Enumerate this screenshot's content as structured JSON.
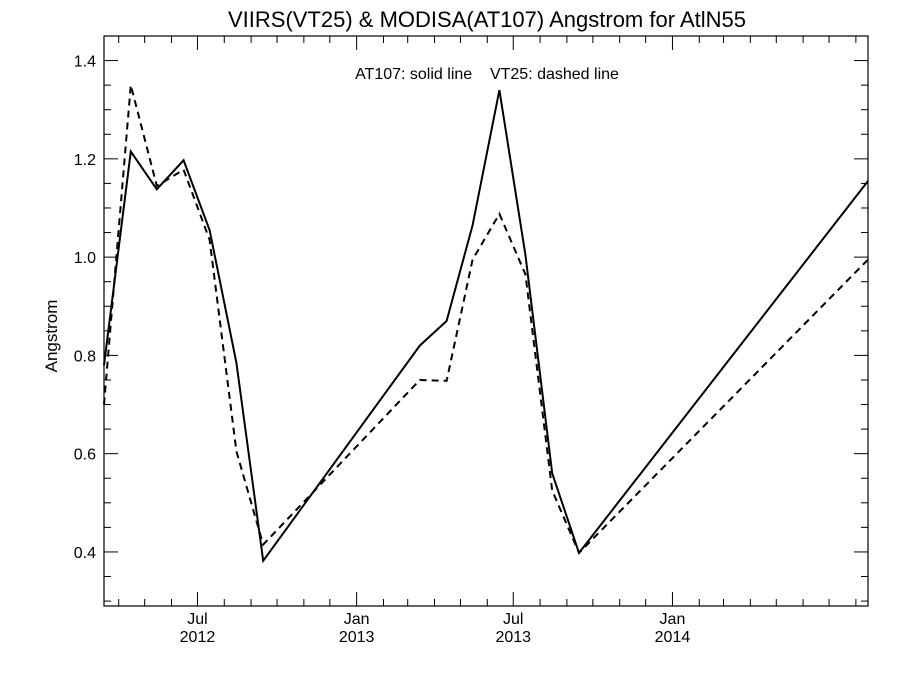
{
  "chart_data": {
    "type": "line",
    "title": "VIIRS(VT25) & MODISA(AT107)  Angstrom for AtlN55",
    "xlabel": "",
    "ylabel": "Angstrom",
    "annotation": "AT107: solid line    VT25: dashed line",
    "xlim": [
      "2012-03-15",
      "2014-08-15"
    ],
    "ylim": [
      0.29,
      1.45
    ],
    "y_ticks": [
      0.4,
      0.6,
      0.8,
      1.0,
      1.2,
      1.4
    ],
    "y_tick_labels": [
      "0.4",
      "0.6",
      "0.8",
      "1.0",
      "1.2",
      "1.4"
    ],
    "x_ticks": [
      {
        "date": "2012-07-01",
        "label": "Jul",
        "sublabel": "2012"
      },
      {
        "date": "2013-01-01",
        "label": "Jan",
        "sublabel": "2013"
      },
      {
        "date": "2013-07-01",
        "label": "Jul",
        "sublabel": "2013"
      },
      {
        "date": "2014-01-01",
        "label": "Jan",
        "sublabel": "2014"
      }
    ],
    "grid": false,
    "series": [
      {
        "name": "AT107",
        "style": "solid",
        "color": "#000000",
        "points": [
          {
            "x": "2012-03-15",
            "y": 0.78
          },
          {
            "x": "2012-04-15",
            "y": 1.215
          },
          {
            "x": "2012-05-15",
            "y": 1.138
          },
          {
            "x": "2012-06-15",
            "y": 1.197
          },
          {
            "x": "2012-07-15",
            "y": 1.055
          },
          {
            "x": "2012-08-15",
            "y": 0.785
          },
          {
            "x": "2012-09-15",
            "y": 0.382
          },
          {
            "x": "2013-03-15",
            "y": 0.82
          },
          {
            "x": "2013-04-15",
            "y": 0.87
          },
          {
            "x": "2013-05-15",
            "y": 1.065
          },
          {
            "x": "2013-06-15",
            "y": 1.34
          },
          {
            "x": "2013-07-15",
            "y": 1.005
          },
          {
            "x": "2013-08-15",
            "y": 0.56
          },
          {
            "x": "2013-09-15",
            "y": 0.398
          },
          {
            "x": "2014-08-15",
            "y": 1.155
          }
        ]
      },
      {
        "name": "VT25",
        "style": "dashed",
        "color": "#000000",
        "points": [
          {
            "x": "2012-03-15",
            "y": 0.7
          },
          {
            "x": "2012-04-15",
            "y": 1.35
          },
          {
            "x": "2012-05-15",
            "y": 1.145
          },
          {
            "x": "2012-06-15",
            "y": 1.178
          },
          {
            "x": "2012-07-15",
            "y": 1.035
          },
          {
            "x": "2012-08-15",
            "y": 0.605
          },
          {
            "x": "2012-09-15",
            "y": 0.415
          },
          {
            "x": "2013-03-15",
            "y": 0.75
          },
          {
            "x": "2013-04-15",
            "y": 0.748
          },
          {
            "x": "2013-05-15",
            "y": 0.995
          },
          {
            "x": "2013-06-15",
            "y": 1.088
          },
          {
            "x": "2013-07-15",
            "y": 0.965
          },
          {
            "x": "2013-08-15",
            "y": 0.525
          },
          {
            "x": "2013-09-15",
            "y": 0.398
          },
          {
            "x": "2014-08-15",
            "y": 0.995
          }
        ]
      }
    ]
  }
}
